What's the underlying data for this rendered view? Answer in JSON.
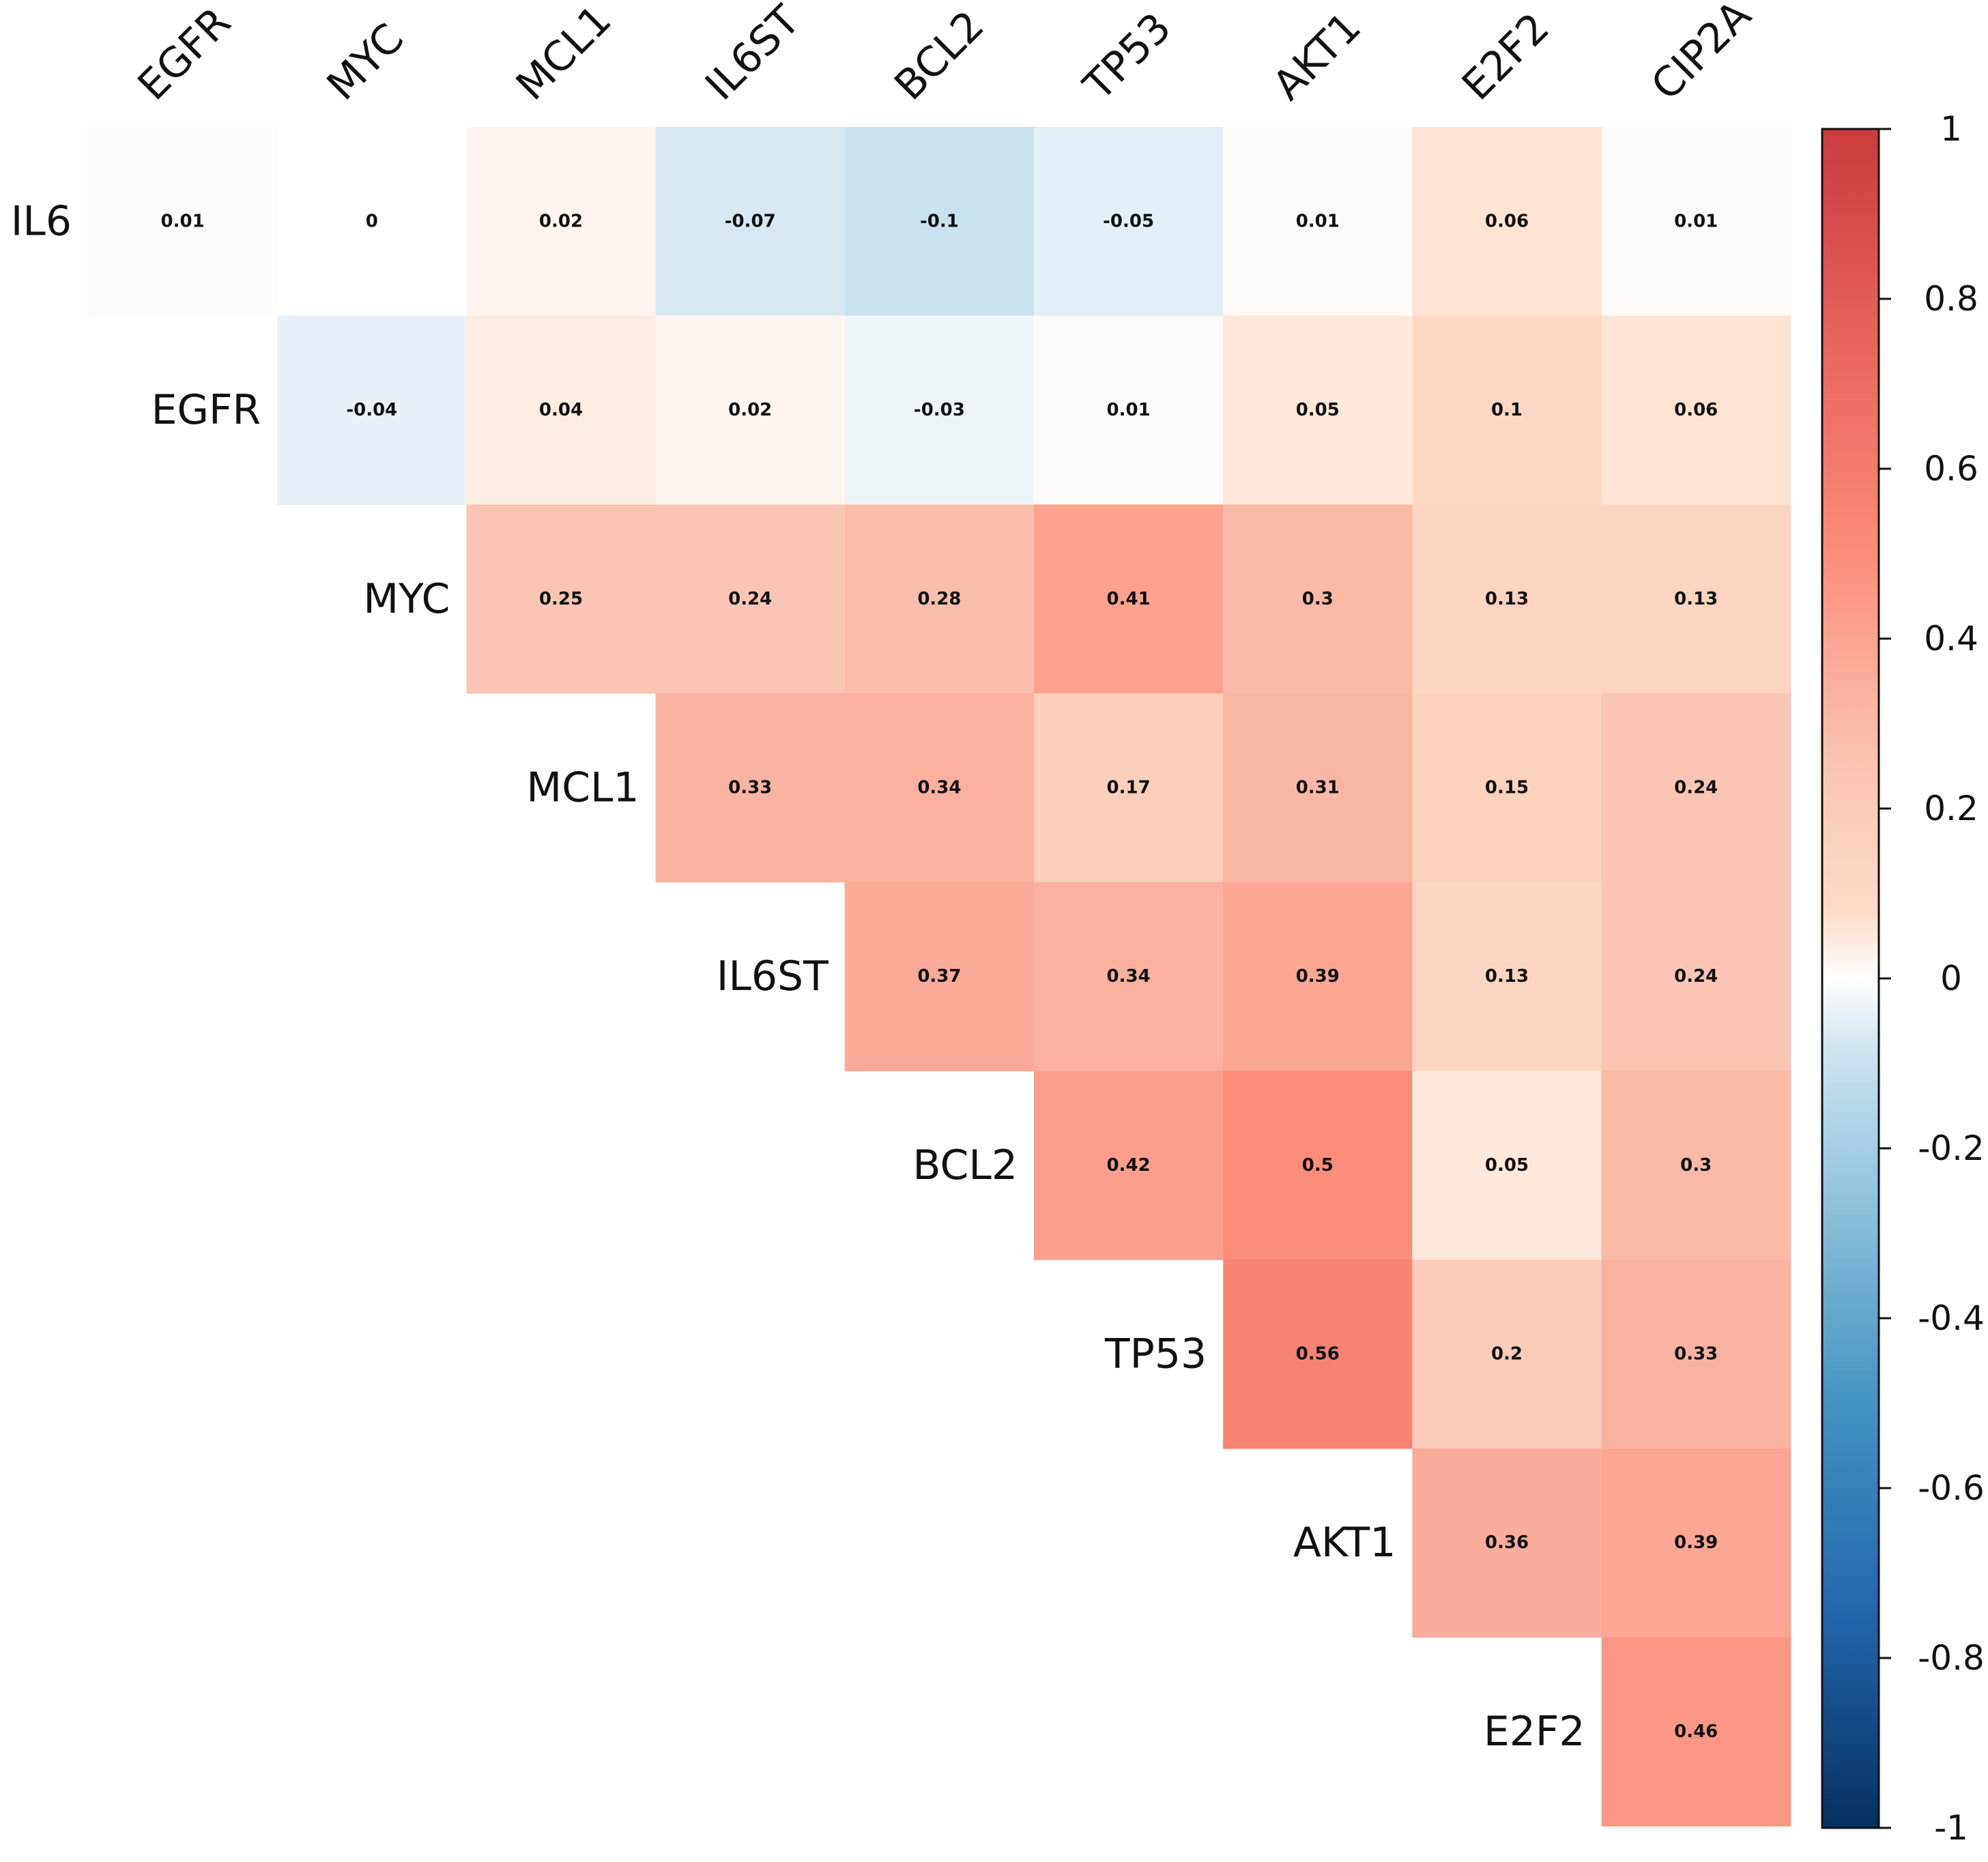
{
  "chart_data": {
    "type": "heatmap",
    "layout": "upper-triangle",
    "row_labels": [
      "IL6",
      "EGFR",
      "MYC",
      "MCL1",
      "IL6ST",
      "BCL2",
      "TP53",
      "AKT1",
      "E2F2"
    ],
    "col_labels": [
      "EGFR",
      "MYC",
      "MCL1",
      "IL6ST",
      "BCL2",
      "TP53",
      "AKT1",
      "E2F2",
      "CIP2A"
    ],
    "values": [
      [
        "0.01",
        "0",
        "0.02",
        "-0.07",
        "-0.1",
        "-0.05",
        "0.01",
        "0.06",
        "0.01"
      ],
      [
        "-0.04",
        "0.04",
        "0.02",
        "-0.03",
        "0.01",
        "0.05",
        "0.1",
        "0.06"
      ],
      [
        "0.25",
        "0.24",
        "0.28",
        "0.41",
        "0.3",
        "0.13",
        "0.13"
      ],
      [
        "0.33",
        "0.34",
        "0.17",
        "0.31",
        "0.15",
        "0.24"
      ],
      [
        "0.37",
        "0.34",
        "0.39",
        "0.13",
        "0.24"
      ],
      [
        "0.42",
        "0.5",
        "0.05",
        "0.3"
      ],
      [
        "0.56",
        "0.2",
        "0.33"
      ],
      [
        "0.36",
        "0.39"
      ],
      [
        "0.46"
      ]
    ],
    "colorbar": {
      "range": [
        -1,
        1
      ],
      "ticks": [
        "1",
        "0.8",
        "0.6",
        "0.4",
        "0.2",
        "0",
        "-0.2",
        "-0.4",
        "-0.6",
        "-0.8",
        "-1"
      ],
      "stops": [
        {
          "v": -1.0,
          "color": "#053061"
        },
        {
          "v": -0.75,
          "color": "#2166ac"
        },
        {
          "v": -0.5,
          "color": "#4393c3"
        },
        {
          "v": -0.25,
          "color": "#92c5de"
        },
        {
          "v": -0.08,
          "color": "#d1e5f0"
        },
        {
          "v": 0.0,
          "color": "#ffffff"
        },
        {
          "v": 0.08,
          "color": "#fddbc7"
        },
        {
          "v": 0.25,
          "color": "#fbc4b4"
        },
        {
          "v": 0.5,
          "color": "#fb8e78"
        },
        {
          "v": 0.75,
          "color": "#e8645a"
        },
        {
          "v": 1.0,
          "color": "#cc3a3e"
        }
      ]
    }
  }
}
